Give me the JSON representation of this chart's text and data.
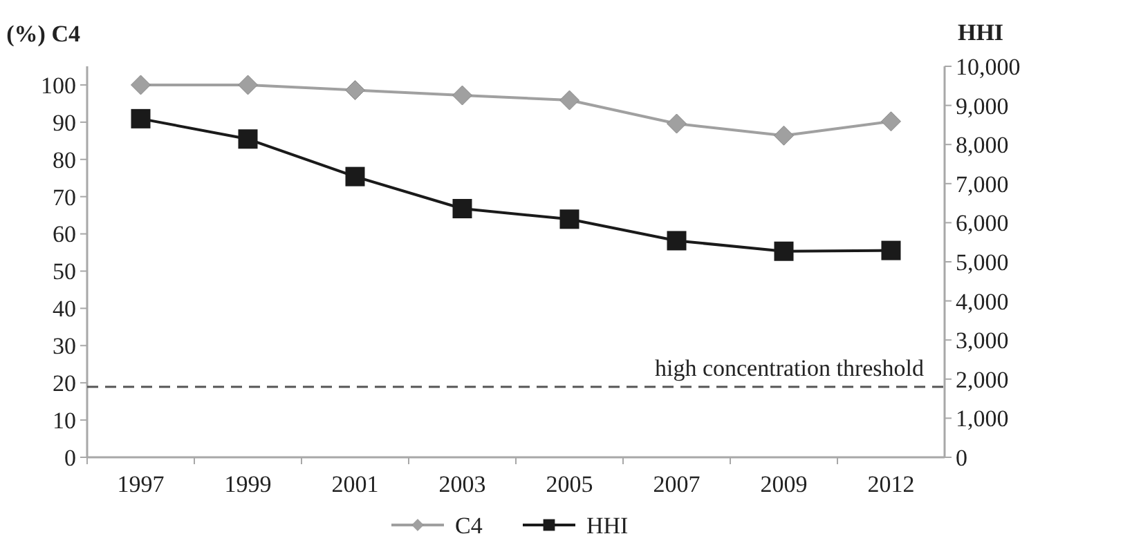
{
  "chart_data": {
    "type": "line",
    "ylabel": "(%) C4",
    "y2label": "HHI",
    "categories": [
      "1997",
      "1999",
      "2001",
      "2003",
      "2005",
      "2007",
      "2009",
      "2012"
    ],
    "series": [
      {
        "name": "C4",
        "color": "#a0a0a0",
        "marker": "diamond",
        "values": [
          100,
          100,
          98.6,
          97.2,
          95.9,
          89.6,
          86.4,
          90.2
        ]
      },
      {
        "name": "HHI",
        "color": "#1a1a1a",
        "marker": "square",
        "axis": "y2",
        "values": [
          8660,
          8140,
          7180,
          6360,
          6090,
          5540,
          5270,
          5290
        ]
      }
    ],
    "ylim": [
      0,
      105
    ],
    "yticks": [
      0,
      10,
      20,
      30,
      40,
      50,
      60,
      70,
      80,
      90,
      100
    ],
    "y2lim": [
      0,
      10000
    ],
    "y2ticks": [
      0,
      {
        "value": 1000,
        "label": "1,000"
      },
      {
        "value": 2000,
        "label": "2,000"
      },
      {
        "value": 3000,
        "label": "3,000"
      },
      {
        "value": 4000,
        "label": "4,000"
      },
      {
        "value": 5000,
        "label": "5,000"
      },
      {
        "value": 6000,
        "label": "6,000"
      },
      {
        "value": 7000,
        "label": "7,000"
      },
      {
        "value": 8000,
        "label": "8,000"
      },
      {
        "value": 9000,
        "label": "9,000"
      },
      {
        "value": 10000,
        "label": "10,000"
      }
    ],
    "ref_lines": [
      {
        "axis": "y2",
        "value": 1800,
        "label": "high concentration threshold",
        "color": "#555555",
        "line_style": "dashed"
      }
    ],
    "grid": false,
    "legend": "bottom",
    "line_style": "solid"
  }
}
